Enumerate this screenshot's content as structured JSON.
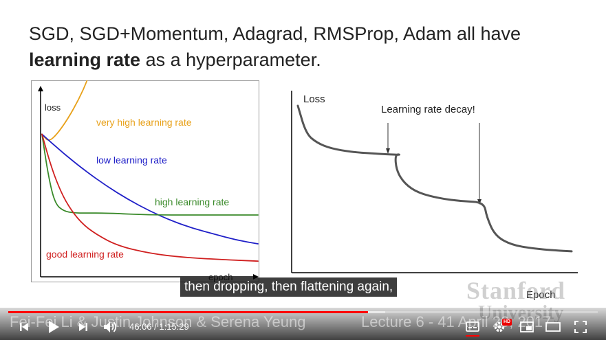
{
  "slide": {
    "title_line1": "SGD, SGD+Momentum, Adagrad, RMSProp, Adam all have",
    "title_bold": "learning rate",
    "title_rest": " as a hyperparameter."
  },
  "chart_data": [
    {
      "type": "line",
      "title": "",
      "xlabel": "epoch",
      "ylabel": "loss",
      "x": [
        0,
        0.1,
        0.2,
        0.3,
        0.4,
        0.5,
        0.6,
        0.7,
        0.8,
        0.9,
        1.0
      ],
      "ylim": [
        0,
        1
      ],
      "series": [
        {
          "name": "very high learning rate",
          "color": "#e8a11a",
          "x": [
            0,
            0.03,
            0.07,
            0.12,
            0.17,
            0.21,
            0.24
          ],
          "values": [
            0.72,
            0.68,
            0.72,
            0.8,
            0.9,
            1.0,
            1.1
          ]
        },
        {
          "name": "low learning rate",
          "color": "#2020c8",
          "x": [
            0,
            0.1,
            0.2,
            0.3,
            0.4,
            0.5,
            0.6,
            0.7,
            0.8,
            0.9,
            1.0
          ],
          "values": [
            0.72,
            0.62,
            0.53,
            0.45,
            0.38,
            0.32,
            0.27,
            0.23,
            0.2,
            0.17,
            0.15
          ]
        },
        {
          "name": "high learning rate",
          "color": "#3a8a2a",
          "x": [
            0,
            0.03,
            0.06,
            0.1,
            0.15,
            0.2,
            0.3,
            0.5,
            0.7,
            1.0
          ],
          "values": [
            0.72,
            0.5,
            0.36,
            0.32,
            0.31,
            0.31,
            0.31,
            0.3,
            0.3,
            0.3
          ]
        },
        {
          "name": "good learning rate",
          "color": "#d02020",
          "x": [
            0,
            0.04,
            0.08,
            0.12,
            0.18,
            0.25,
            0.35,
            0.5,
            0.65,
            0.8,
            1.0
          ],
          "values": [
            0.72,
            0.56,
            0.44,
            0.35,
            0.26,
            0.2,
            0.14,
            0.1,
            0.08,
            0.07,
            0.06
          ]
        }
      ]
    },
    {
      "type": "line",
      "title": "",
      "xlabel": "Epoch",
      "ylabel": "Loss",
      "annotation": "Learning rate decay!",
      "ylim": [
        0,
        1
      ],
      "series": [
        {
          "name": "",
          "color": "#555555",
          "x": [
            0,
            0.03,
            0.07,
            0.12,
            0.2,
            0.3,
            0.38,
            0.355,
            0.36,
            0.39,
            0.44,
            0.52,
            0.6,
            0.68,
            0.69,
            0.72,
            0.78,
            0.86,
            0.94,
            1.0
          ],
          "values": [
            0.9,
            0.75,
            0.7,
            0.67,
            0.65,
            0.64,
            0.635,
            0.64,
            0.55,
            0.48,
            0.43,
            0.4,
            0.385,
            0.38,
            0.3,
            0.2,
            0.15,
            0.13,
            0.12,
            0.115
          ]
        }
      ]
    }
  ],
  "caption": "then dropping, then flattening again,",
  "footer": {
    "left": "Fei-Fei Li & Justin Johnson & Serena Yeung",
    "right": "Lecture 6 - 41     April 20, 2017",
    "watermark": "Stanford",
    "watermark2": "University"
  },
  "player": {
    "current_time": "46:06",
    "duration": "1:15:29",
    "time_text": "46:06 / 1:15:29",
    "hd_badge": "HD",
    "progress_played": 0.61,
    "progress_buffered": 0.64
  },
  "colors": {
    "progress": "#ff0000",
    "caption_bg": "#080808"
  }
}
